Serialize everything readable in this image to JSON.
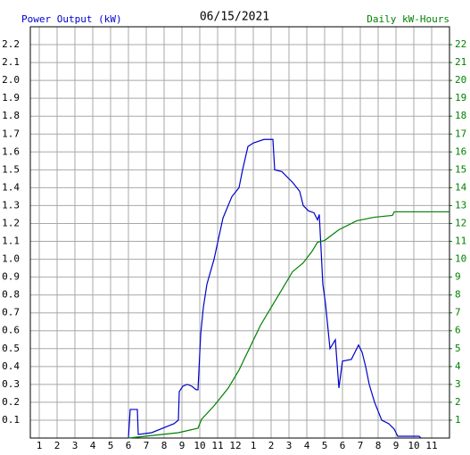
{
  "chart_data": {
    "type": "line",
    "title": "06/15/2021",
    "ylabel": "Power Output (kW)",
    "y2label": "Daily kW-Hours",
    "grid": true,
    "xlim": [
      0.5,
      24
    ],
    "xticks": [
      1,
      2,
      3,
      4,
      5,
      6,
      7,
      8,
      9,
      10,
      11,
      12,
      {
        "value": 13,
        "label": "1"
      },
      {
        "value": 14,
        "label": "2"
      },
      {
        "value": 15,
        "label": "3"
      },
      {
        "value": 16,
        "label": "4"
      },
      {
        "value": 17,
        "label": "5"
      },
      {
        "value": 18,
        "label": "6"
      },
      {
        "value": 19,
        "label": "7"
      },
      {
        "value": 20,
        "label": "8"
      },
      {
        "value": 21,
        "label": "9"
      },
      {
        "value": 22,
        "label": "10"
      },
      {
        "value": 23,
        "label": "11"
      }
    ],
    "ylim": [
      0,
      2.3
    ],
    "yticks": [
      0.1,
      0.2,
      0.3,
      0.4,
      0.5,
      0.6,
      0.7,
      0.8,
      0.9,
      {
        "value": 1,
        "label": "1.0"
      },
      1.1,
      1.2,
      1.3,
      1.4,
      1.5,
      1.6,
      1.7,
      1.8,
      1.9,
      {
        "value": 2,
        "label": "2.0"
      },
      2.1,
      2.2
    ],
    "y2lim": [
      0,
      23
    ],
    "y2ticks": [
      1,
      2,
      3,
      4,
      5,
      6,
      7,
      8,
      9,
      10,
      11,
      12,
      13,
      14,
      15,
      16,
      17,
      18,
      19,
      20,
      21,
      22
    ],
    "series": [
      {
        "name": "Power Output (kW)",
        "color": "#0000cc",
        "x": [
          6.0,
          6.1,
          6.5,
          6.55,
          7.3,
          8.05,
          8.55,
          8.8,
          8.85,
          9.05,
          9.3,
          9.55,
          9.8,
          9.9,
          10.05,
          10.2,
          10.4,
          10.8,
          11.3,
          11.8,
          12.2,
          12.4,
          12.7,
          13.0,
          13.6,
          14.1,
          14.2,
          14.6,
          14.9,
          15.2,
          15.6,
          15.8,
          16.1,
          16.4,
          16.6,
          16.7,
          16.9,
          17.05,
          17.2,
          17.3,
          17.6,
          17.8,
          18.0,
          18.5,
          18.8,
          18.9,
          19.1,
          19.3,
          19.5,
          19.8,
          20.0,
          20.2,
          20.6,
          20.9,
          21.1,
          22.3,
          22.4
        ],
        "values": [
          0,
          0.16,
          0.16,
          0.02,
          0.03,
          0.06,
          0.08,
          0.1,
          0.26,
          0.29,
          0.3,
          0.29,
          0.27,
          0.27,
          0.58,
          0.73,
          0.86,
          1.0,
          1.23,
          1.35,
          1.4,
          1.5,
          1.63,
          1.65,
          1.67,
          1.67,
          1.5,
          1.49,
          1.46,
          1.43,
          1.38,
          1.3,
          1.27,
          1.26,
          1.22,
          1.25,
          0.86,
          0.75,
          0.6,
          0.5,
          0.55,
          0.28,
          0.43,
          0.44,
          0.5,
          0.52,
          0.48,
          0.4,
          0.3,
          0.2,
          0.15,
          0.1,
          0.08,
          0.05,
          0.01,
          0.01,
          0
        ]
      },
      {
        "name": "Daily kW-Hours",
        "color": "#008000",
        "axis": "y2",
        "x": [
          6.0,
          8.8,
          9.9,
          10.1,
          10.8,
          11.6,
          12.2,
          12.8,
          13.4,
          14.0,
          14.6,
          15.2,
          15.8,
          16.3,
          16.6,
          17.0,
          17.8,
          18.8,
          19.8,
          20.8,
          20.9,
          24
        ],
        "values": [
          0,
          0.3,
          0.55,
          1.05,
          1.8,
          2.8,
          3.8,
          5.05,
          6.3,
          7.3,
          8.3,
          9.3,
          9.8,
          10.45,
          10.95,
          11.05,
          11.65,
          12.15,
          12.35,
          12.45,
          12.65,
          12.65
        ]
      }
    ]
  }
}
